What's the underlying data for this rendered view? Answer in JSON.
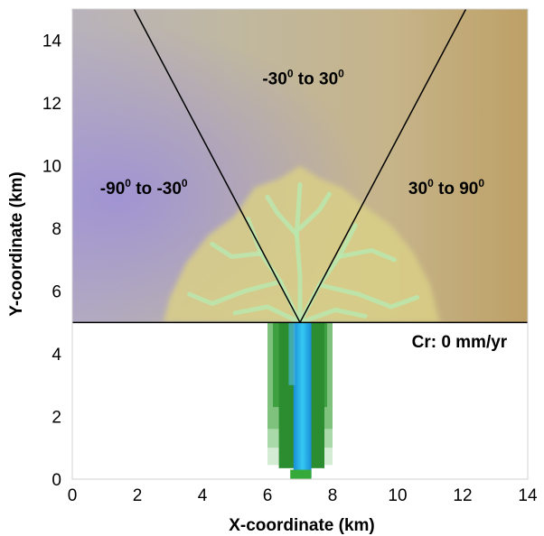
{
  "chart_data": {
    "type": "heatmap",
    "xlabel": "X-coordinate (km)",
    "ylabel": "Y-coordinate (km)",
    "xlim": [
      0,
      14
    ],
    "ylim": [
      0,
      15
    ],
    "xticks": [
      "0",
      "2",
      "4",
      "6",
      "8",
      "10",
      "12",
      "14"
    ],
    "yticks": [
      "0",
      "2",
      "4",
      "6",
      "8",
      "10",
      "12",
      "14"
    ],
    "xtick_values": [
      0,
      2,
      4,
      6,
      8,
      10,
      12,
      14
    ],
    "ytick_values": [
      0,
      2,
      4,
      6,
      8,
      10,
      12,
      14
    ],
    "grid": false,
    "annotation": "Cr: 0 mm/yr",
    "shoreline_y": 5,
    "apex": [
      7,
      5
    ],
    "channel_x_range": [
      6,
      8
    ],
    "left_line": {
      "x": [
        7,
        1.9
      ],
      "y": [
        5,
        15
      ]
    },
    "right_line": {
      "x": [
        7,
        12.1
      ],
      "y": [
        5,
        15
      ]
    },
    "regions": [
      {
        "label": "-90",
        "label_to": "to",
        "label_end": "-30",
        "sup": "0",
        "center": [
          2.2,
          9.1
        ],
        "color": "#a89cc6"
      },
      {
        "label": "-30",
        "label_to": "to",
        "label_end": "30",
        "sup": "0",
        "center": [
          7.1,
          12.6
        ],
        "color": "#b5a98a"
      },
      {
        "label": "30",
        "label_to": "to",
        "label_end": "90",
        "sup": "0",
        "center": [
          11.5,
          9.1
        ],
        "color": "#b8a074"
      }
    ]
  }
}
